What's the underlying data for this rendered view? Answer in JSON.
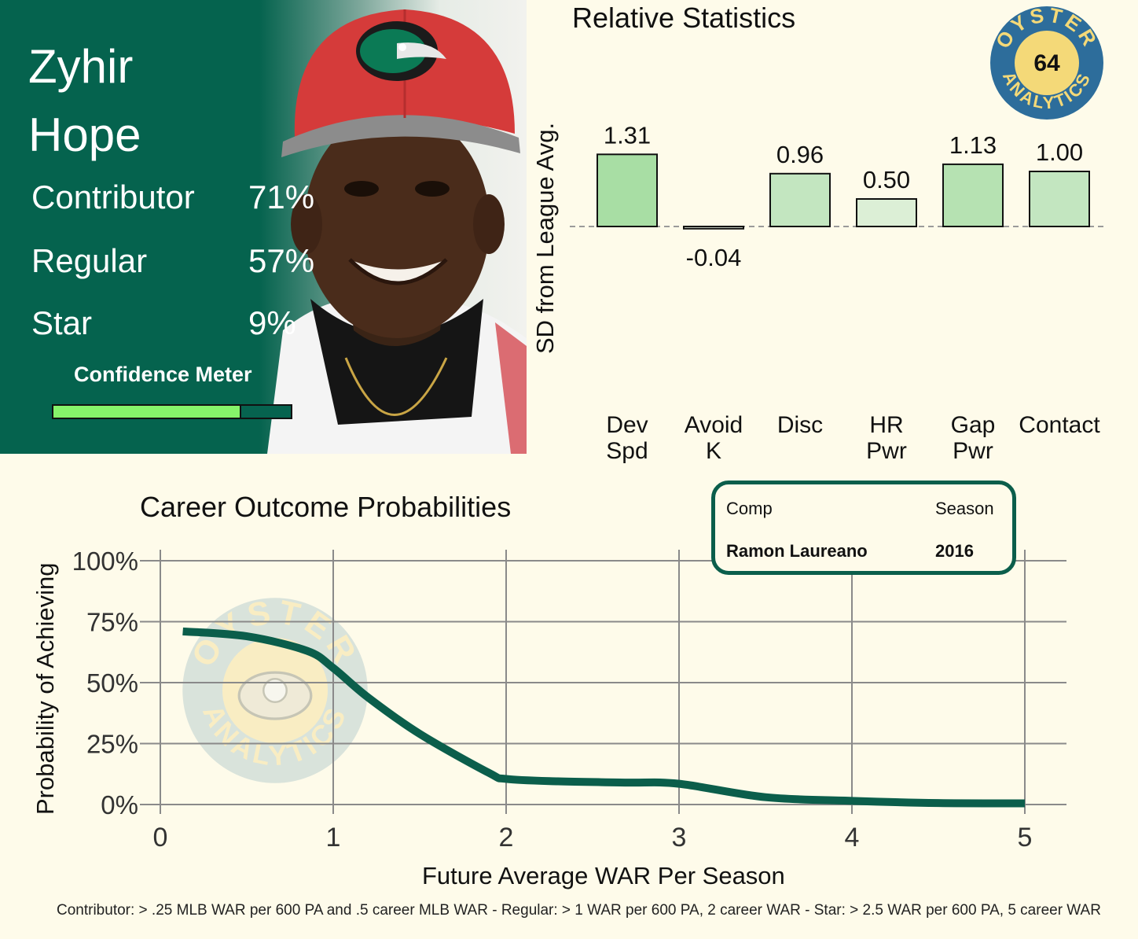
{
  "player": {
    "first_name": "Zyhir",
    "last_name": "Hope",
    "probabilities": [
      {
        "label": "Contributor",
        "value": "71%"
      },
      {
        "label": "Regular",
        "value": "57%"
      },
      {
        "label": "Star",
        "value": "9%"
      }
    ],
    "confidence_label": "Confidence Meter",
    "confidence_level": 0.79
  },
  "logo": {
    "text_top": "OYSTER",
    "text_bottom": "ANALYTICS",
    "score": "64"
  },
  "comp": {
    "comp_header": "Comp",
    "season_header": "Season",
    "comp_value": "Ramon Laureano",
    "season_value": "2016"
  },
  "footnote": "Contributor: > .25 MLB WAR per 600 PA and .5 career MLB WAR - Regular: > 1 WAR per 600 PA, 2 career WAR - Star: > 2.5 WAR per 600 PA, 5 career WAR",
  "chart_data": [
    {
      "type": "bar",
      "title": "Relative Statistics",
      "ylabel": "SD from League Avg.",
      "categories": [
        [
          "Dev",
          "Spd"
        ],
        [
          "Avoid",
          "K"
        ],
        [
          "Disc"
        ],
        [
          "HR",
          "Pwr"
        ],
        [
          "Gap",
          "Pwr"
        ],
        [
          "Contact"
        ]
      ],
      "values": [
        1.31,
        -0.04,
        0.96,
        0.5,
        1.13,
        1.0
      ],
      "value_labels": [
        "1.31",
        "-0.04",
        "0.96",
        "0.50",
        "1.13",
        "1.00"
      ],
      "baseline": 0,
      "colors": [
        "#a8dea4",
        "#e8f0e0",
        "#c3e6c0",
        "#dcefd6",
        "#b6e2b2",
        "#c3e6c0"
      ]
    },
    {
      "type": "line",
      "title": "Career Outcome Probabilities",
      "xlabel": "Future Average WAR Per Season",
      "ylabel": "Probability of Achieving",
      "xlim": [
        0,
        5
      ],
      "ylim": [
        0,
        100
      ],
      "xticks": [
        "0",
        "1",
        "2",
        "3",
        "4",
        "5"
      ],
      "yticks": [
        "0%",
        "25%",
        "50%",
        "75%",
        "100%"
      ],
      "series": [
        {
          "color": "#0b5e4b",
          "x": [
            0.13,
            0.5,
            0.85,
            1.0,
            1.2,
            1.5,
            1.9,
            2.0,
            2.3,
            2.7,
            3.0,
            3.5,
            4.0,
            4.5,
            5.0
          ],
          "y": [
            71,
            69,
            63,
            56,
            44,
            29,
            13,
            10.5,
            9.5,
            9,
            8.5,
            3,
            1.5,
            0.6,
            0.5
          ]
        }
      ],
      "grid": true,
      "line_color": "#0b5e4b"
    }
  ]
}
